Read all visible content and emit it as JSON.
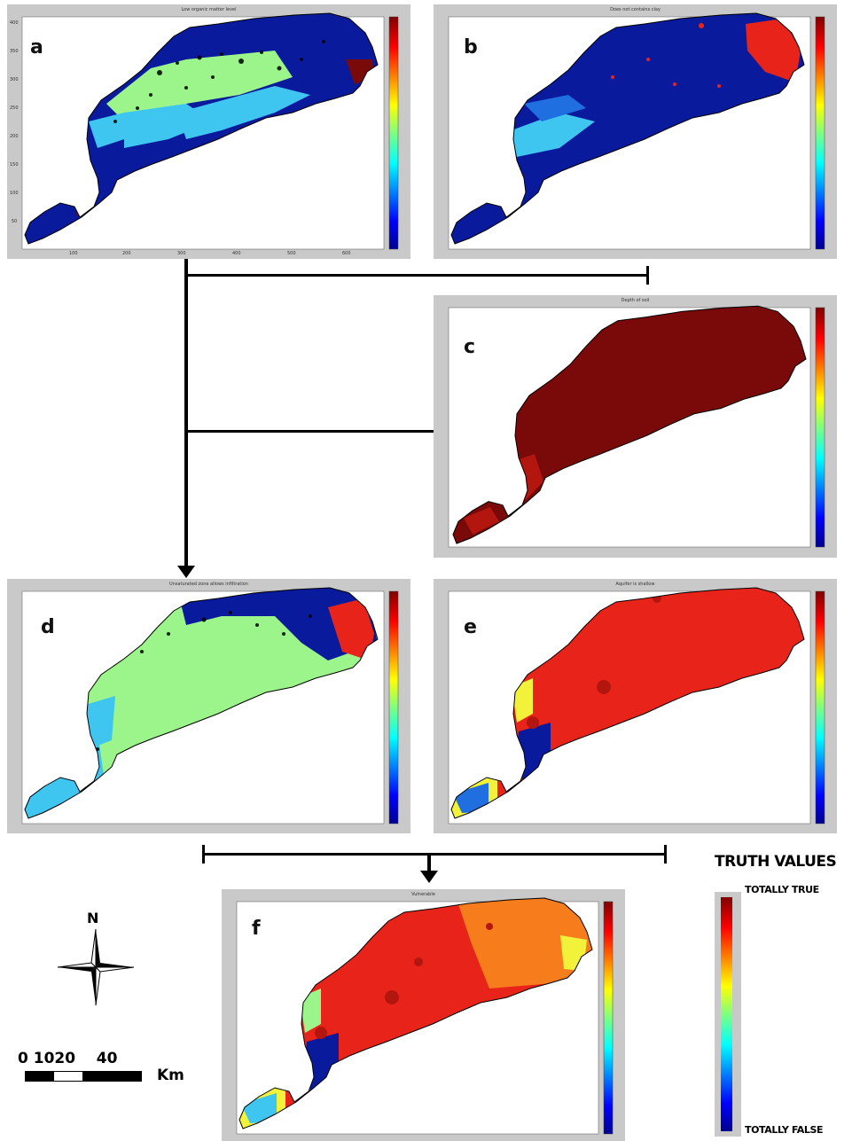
{
  "panels": {
    "a": {
      "label": "a",
      "title": "Low organic matter level"
    },
    "b": {
      "label": "b",
      "title": "Does not contains clay"
    },
    "c": {
      "label": "c",
      "title": "Depth of soil"
    },
    "d": {
      "label": "d",
      "title": "Unsaturated zone allows infiltration"
    },
    "e": {
      "label": "e",
      "title": "Aquifer is shallow"
    },
    "f": {
      "label": "f",
      "title": "Vulnerable"
    }
  },
  "axis": {
    "x_ticks": [
      "100",
      "200",
      "300",
      "400",
      "500",
      "600"
    ],
    "y_ticks": [
      "50",
      "100",
      "150",
      "200",
      "250",
      "300",
      "350",
      "400"
    ],
    "cbar_ticks": [
      "0.1",
      "0.2",
      "0.3",
      "0.4",
      "0.5",
      "0.6",
      "0.7",
      "0.8",
      "0.9",
      "1"
    ]
  },
  "legend": {
    "title": "TRUTH VALUES",
    "top": "TOTALLY TRUE",
    "bottom": "TOTALLY FALSE"
  },
  "compass": {
    "north": "N"
  },
  "scalebar": {
    "labels": "0 1020    40",
    "unit": "Km"
  },
  "colors": {
    "dark_blue": "#0a1a9c",
    "light_green": "#9cf58a",
    "cyan": "#3fc6f0",
    "red": "#e8241a",
    "dark_red": "#7a0a0a",
    "orange": "#f77c1c",
    "yellow": "#f2f23a",
    "panel_gray": "#c9c9c9"
  }
}
